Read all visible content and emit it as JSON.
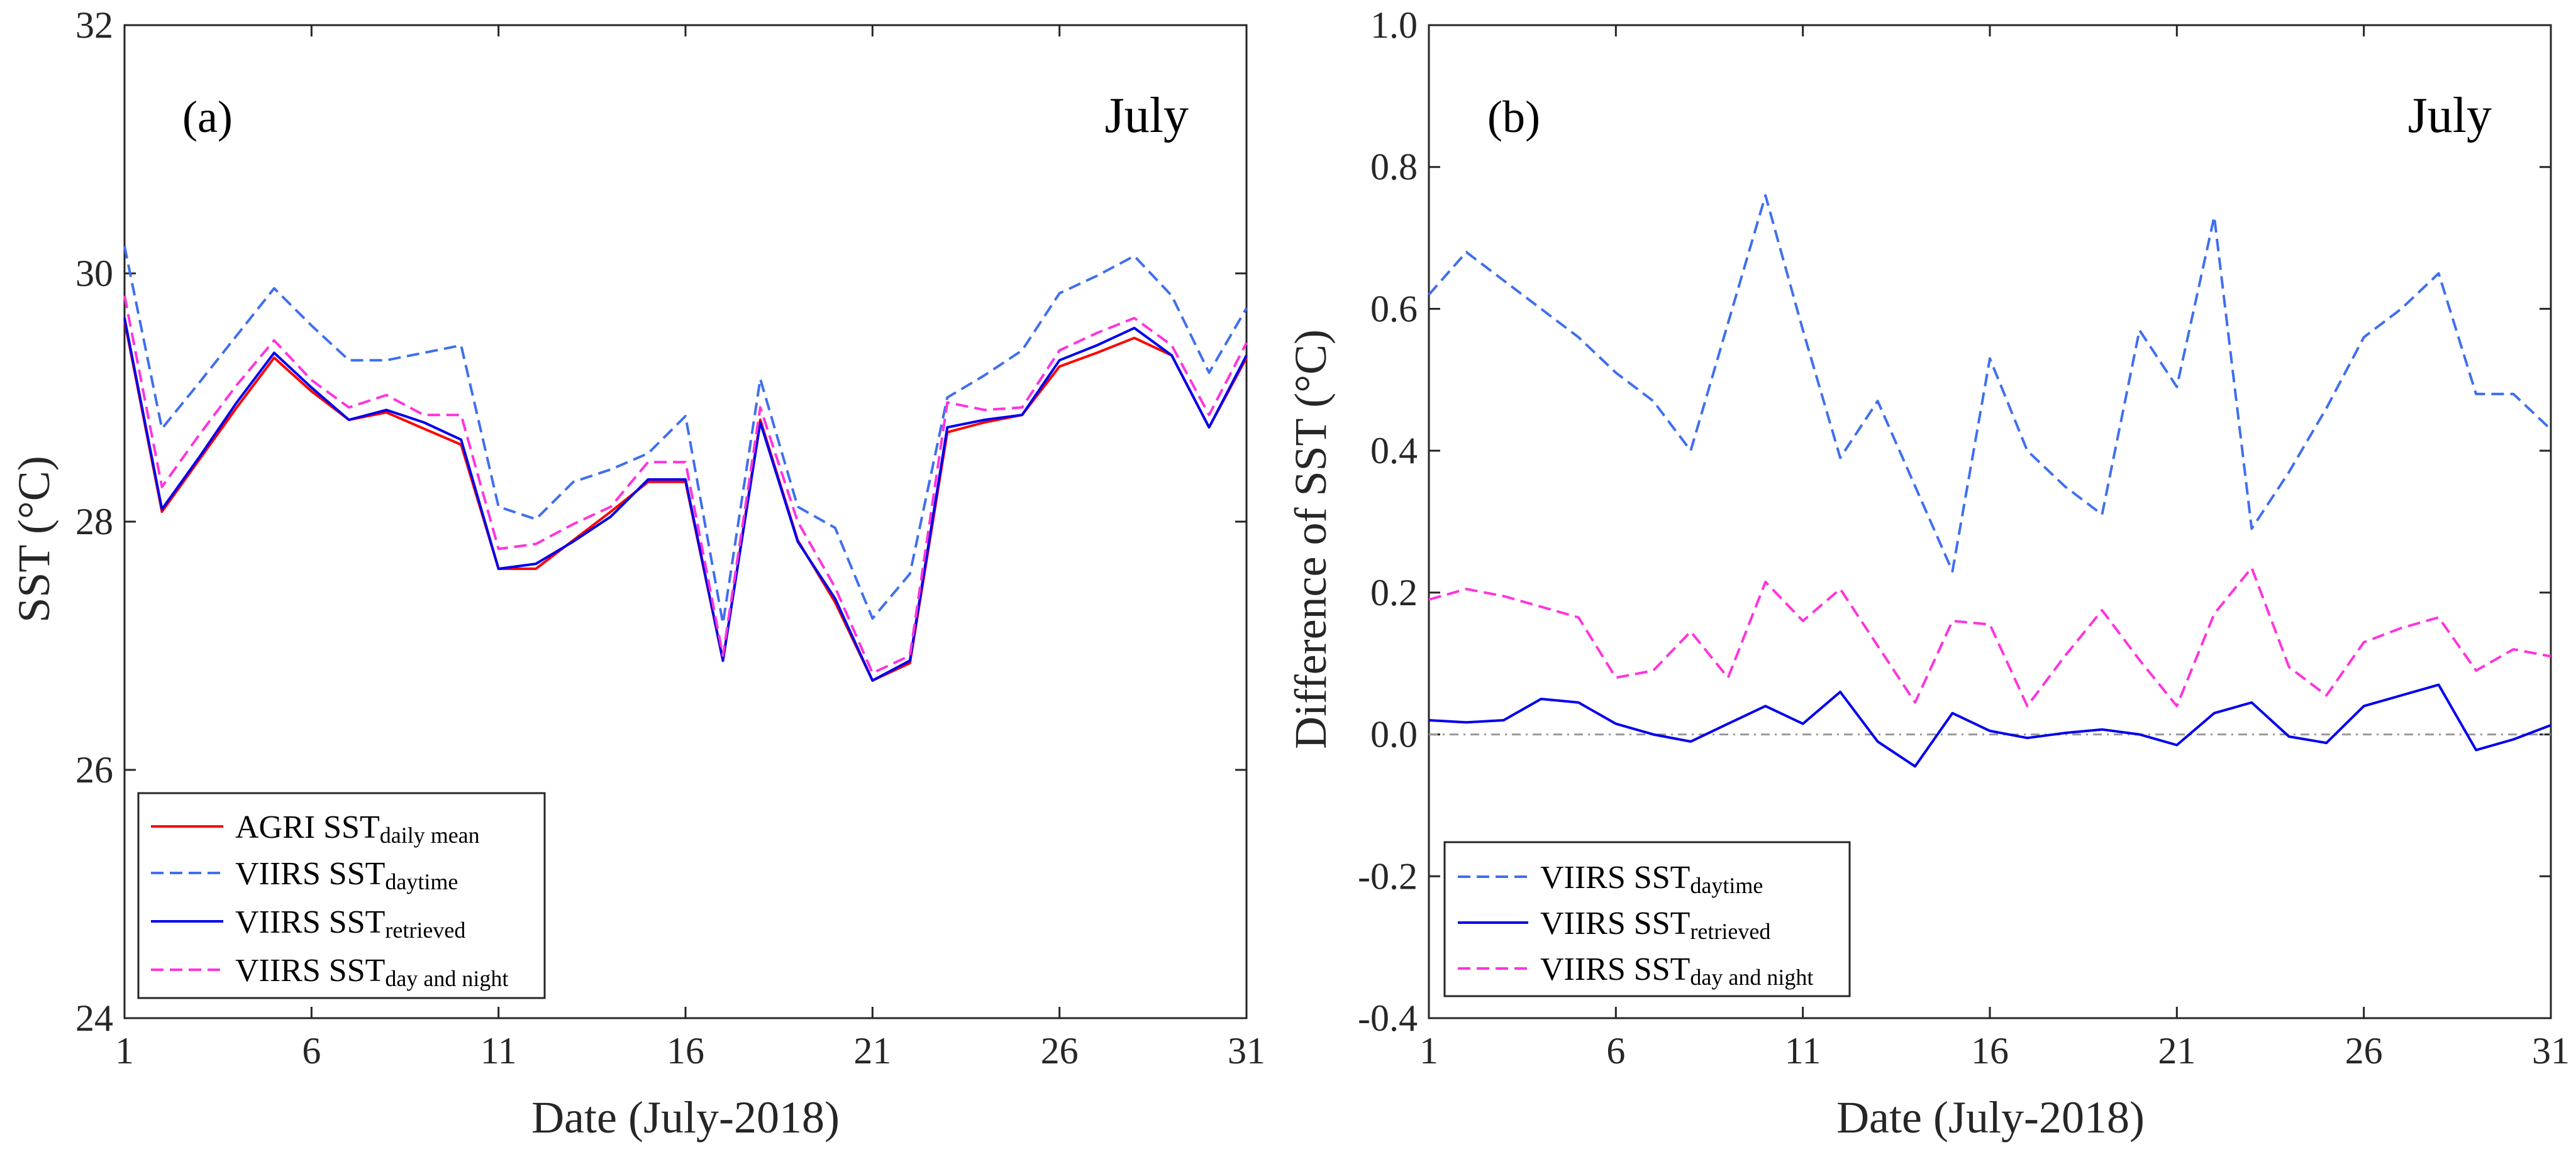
{
  "colors": {
    "agri": "#ff0000",
    "viirs_daytime": "#3f6fef",
    "viirs_retrieved": "#0000ee",
    "viirs_day_night": "#ff33dd",
    "zero_line": "#999999",
    "axis": "#262626"
  },
  "chart_data": [
    {
      "type": "line",
      "panel": "(a)",
      "month": "July",
      "xlabel": "Date (July-2018)",
      "ylabel": "SST (°C)",
      "xlim": [
        1,
        31
      ],
      "ylim": [
        24,
        32
      ],
      "xticks": [
        1,
        6,
        11,
        16,
        21,
        26,
        31
      ],
      "yticks": [
        24,
        26,
        28,
        30,
        32
      ],
      "legend_position": "bottom-left",
      "x": [
        1,
        2,
        3,
        4,
        5,
        6,
        7,
        8,
        9,
        10,
        11,
        12,
        13,
        14,
        15,
        16,
        17,
        18,
        19,
        20,
        21,
        22,
        23,
        24,
        25,
        26,
        27,
        28,
        29,
        30,
        31
      ],
      "series": [
        {
          "name": "AGRI SST",
          "name_sub": "daily mean",
          "style": "solid",
          "color_key": "agri",
          "values": [
            29.62,
            28.08,
            28.5,
            28.92,
            29.32,
            29.05,
            28.82,
            28.88,
            28.75,
            28.62,
            27.62,
            27.62,
            27.85,
            28.08,
            28.32,
            28.32,
            26.88,
            28.82,
            27.85,
            27.35,
            26.72,
            26.86,
            28.72,
            28.8,
            28.86,
            29.25,
            29.36,
            29.48,
            29.34,
            28.76,
            29.32
          ]
        },
        {
          "name": "VIIRS SST",
          "name_sub": "daytime",
          "style": "dashed",
          "color_key": "viirs_daytime",
          "values": [
            30.22,
            28.75,
            29.12,
            29.5,
            29.88,
            29.58,
            29.3,
            29.3,
            29.36,
            29.42,
            28.12,
            28.02,
            28.32,
            28.42,
            28.55,
            28.85,
            27.18,
            29.15,
            28.12,
            27.95,
            27.22,
            27.58,
            29.0,
            29.18,
            29.38,
            29.84,
            29.98,
            30.14,
            29.82,
            29.2,
            29.72
          ]
        },
        {
          "name": "VIIRS SST",
          "name_sub": "retrieved",
          "style": "solid",
          "color_key": "viirs_retrieved",
          "values": [
            29.64,
            28.1,
            28.52,
            28.96,
            29.36,
            29.08,
            28.82,
            28.9,
            28.8,
            28.66,
            27.62,
            27.66,
            27.84,
            28.04,
            28.34,
            28.34,
            26.88,
            28.8,
            27.84,
            27.38,
            26.72,
            26.88,
            28.76,
            28.82,
            28.86,
            29.3,
            29.42,
            29.56,
            29.34,
            28.76,
            29.34
          ]
        },
        {
          "name": "VIIRS SST",
          "name_sub": "day and night",
          "style": "dashed",
          "color_key": "viirs_day_night",
          "values": [
            29.82,
            28.28,
            28.7,
            29.1,
            29.46,
            29.14,
            28.92,
            29.02,
            28.86,
            28.86,
            27.78,
            27.82,
            27.98,
            28.12,
            28.48,
            28.48,
            26.92,
            28.92,
            28.0,
            27.47,
            26.78,
            26.92,
            28.96,
            28.9,
            28.92,
            29.38,
            29.52,
            29.64,
            29.42,
            28.86,
            29.44
          ]
        }
      ]
    },
    {
      "type": "line",
      "panel": "(b)",
      "month": "July",
      "xlabel": "Date (July-2018)",
      "ylabel": "Difference of SST (°C)",
      "xlim": [
        1,
        31
      ],
      "ylim": [
        -0.4,
        1.0
      ],
      "xticks": [
        1,
        6,
        11,
        16,
        21,
        26,
        31
      ],
      "yticks": [
        -0.4,
        -0.2,
        0.0,
        0.2,
        0.4,
        0.6,
        0.8,
        1.0
      ],
      "ytick_labels": [
        "-0.4",
        "-0.2",
        "0.0",
        "0.2",
        "0.4",
        "0.6",
        "0.8",
        "1.0"
      ],
      "reference_line_y": 0.0,
      "legend_position": "bottom-left",
      "x": [
        1,
        2,
        3,
        4,
        5,
        6,
        7,
        8,
        9,
        10,
        11,
        12,
        13,
        14,
        15,
        16,
        17,
        18,
        19,
        20,
        21,
        22,
        23,
        24,
        25,
        26,
        27,
        28,
        29,
        30,
        31
      ],
      "series": [
        {
          "name": "VIIRS SST",
          "name_sub": "daytime",
          "style": "dashed",
          "color_key": "viirs_daytime",
          "values": [
            0.62,
            0.68,
            0.64,
            0.6,
            0.56,
            0.51,
            0.47,
            0.4,
            0.58,
            0.76,
            0.57,
            0.39,
            0.47,
            0.35,
            0.23,
            0.53,
            0.4,
            0.35,
            0.31,
            0.57,
            0.49,
            0.73,
            0.29,
            0.37,
            0.46,
            0.56,
            0.6,
            0.65,
            0.48,
            0.48,
            0.43
          ]
        },
        {
          "name": "VIIRS SST",
          "name_sub": "retrieved",
          "style": "solid",
          "color_key": "viirs_retrieved",
          "values": [
            0.02,
            0.017,
            0.02,
            0.05,
            0.045,
            0.015,
            0.0,
            -0.01,
            0.015,
            0.04,
            0.015,
            0.06,
            -0.01,
            -0.045,
            0.03,
            0.005,
            -0.005,
            0.002,
            0.007,
            0.0,
            -0.015,
            0.03,
            0.045,
            -0.003,
            -0.012,
            0.04,
            0.055,
            0.07,
            -0.022,
            -0.007,
            0.013
          ]
        },
        {
          "name": "VIIRS SST",
          "name_sub": "day and night",
          "style": "dashed",
          "color_key": "viirs_day_night",
          "values": [
            0.19,
            0.205,
            0.195,
            0.18,
            0.165,
            0.08,
            0.09,
            0.145,
            0.08,
            0.215,
            0.16,
            0.205,
            0.125,
            0.045,
            0.16,
            0.155,
            0.04,
            0.11,
            0.175,
            0.105,
            0.04,
            0.17,
            0.235,
            0.095,
            0.055,
            0.13,
            0.15,
            0.165,
            0.09,
            0.12,
            0.11
          ]
        }
      ]
    }
  ]
}
